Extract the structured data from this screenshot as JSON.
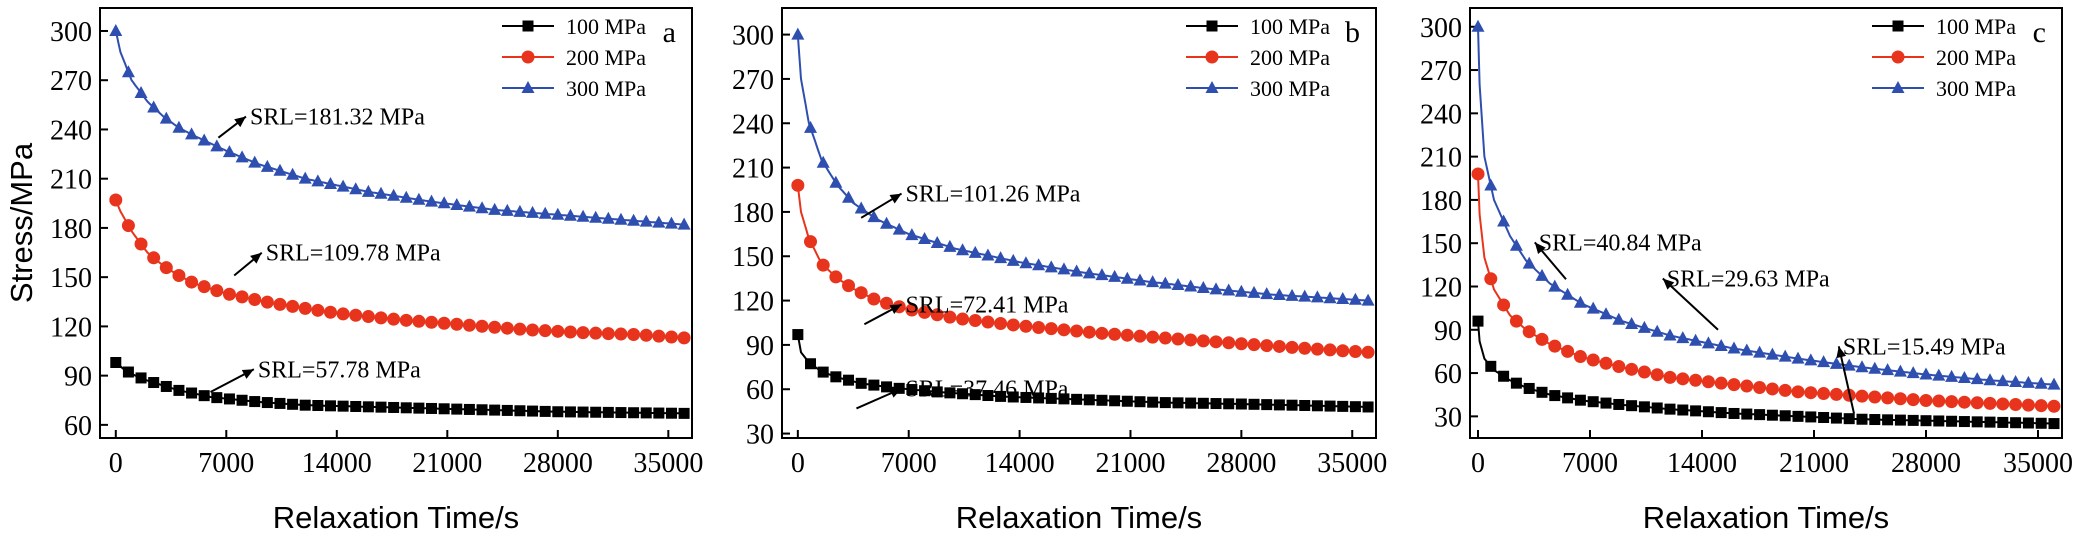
{
  "chart_data": [
    {
      "type": "line",
      "panel_label": "a",
      "xlabel": "Relaxation Time/s",
      "ylabel": "Stress/MPa",
      "xlim": [
        -1000,
        36500
      ],
      "ylim": [
        52,
        314
      ],
      "xticks": [
        0,
        7000,
        14000,
        21000,
        28000,
        35000
      ],
      "yticks": [
        60,
        90,
        120,
        150,
        180,
        210,
        240,
        270,
        300
      ],
      "legend_position": "top-right",
      "series": [
        {
          "name": "100 MPa",
          "color": "#000000",
          "marker": "square",
          "x": [
            0,
            500,
            1000,
            2000,
            3000,
            4000,
            6000,
            9000,
            12000,
            16000,
            20000,
            24000,
            28000,
            32000,
            36000
          ],
          "y": [
            98,
            94,
            91,
            87,
            84,
            81,
            77,
            74,
            72,
            71,
            70,
            69,
            68,
            67.5,
            67
          ]
        },
        {
          "name": "200 MPa",
          "color": "#e8341c",
          "marker": "circle",
          "x": [
            0,
            300,
            1000,
            2000,
            3000,
            4000,
            5000,
            7000,
            10000,
            14000,
            18000,
            22000,
            26000,
            30000,
            33000,
            36000
          ],
          "y": [
            197,
            190,
            178,
            165,
            157,
            151,
            146,
            140,
            134,
            128,
            124,
            121,
            118,
            116,
            115,
            113
          ]
        },
        {
          "name": "300 MPa",
          "color": "#2e4fb0",
          "marker": "triangle",
          "x": [
            0,
            300,
            1000,
            2000,
            3000,
            4000,
            5000,
            7000,
            9000,
            12000,
            16000,
            20000,
            24000,
            28000,
            32000,
            36000
          ],
          "y": [
            300,
            287,
            270,
            257,
            248,
            241,
            236,
            227,
            219,
            210,
            202,
            196,
            191,
            188,
            185,
            182
          ]
        }
      ],
      "annotations": [
        {
          "text": "SRL=181.32 MPa",
          "x": 8500,
          "y": 243,
          "arrow_to": [
            6500,
            235
          ]
        },
        {
          "text": "SRL=109.78 MPa",
          "x": 9500,
          "y": 160,
          "arrow_to": [
            7500,
            151
          ]
        },
        {
          "text": "SRL=57.78 MPa",
          "x": 9000,
          "y": 89,
          "arrow_to": [
            6000,
            80
          ]
        }
      ]
    },
    {
      "type": "line",
      "panel_label": "b",
      "xlabel": "Relaxation Time/s",
      "ylabel": "",
      "xlim": [
        -1000,
        36500
      ],
      "ylim": [
        27,
        318
      ],
      "xticks": [
        0,
        7000,
        14000,
        21000,
        28000,
        35000
      ],
      "yticks": [
        30,
        60,
        90,
        120,
        150,
        180,
        210,
        240,
        270,
        300
      ],
      "legend_position": "top-right",
      "series": [
        {
          "name": "100 MPa",
          "color": "#000000",
          "marker": "square",
          "x": [
            0,
            200,
            700,
            1500,
            2500,
            4000,
            6000,
            9000,
            13000,
            18000,
            23000,
            28000,
            32000,
            36000
          ],
          "y": [
            97,
            85,
            78,
            72,
            68,
            64,
            61,
            58,
            55,
            53,
            51,
            50,
            49,
            48
          ]
        },
        {
          "name": "200 MPa",
          "color": "#e8341c",
          "marker": "circle",
          "x": [
            0,
            200,
            700,
            1500,
            2500,
            3500,
            5000,
            7000,
            10000,
            14000,
            19000,
            24000,
            29000,
            33000,
            36000
          ],
          "y": [
            198,
            180,
            162,
            145,
            135,
            128,
            120,
            114,
            108,
            103,
            98,
            94,
            90,
            87,
            85
          ]
        },
        {
          "name": "300 MPa",
          "color": "#2e4fb0",
          "marker": "triangle",
          "x": [
            0,
            200,
            700,
            1500,
            2500,
            3500,
            5000,
            7000,
            10000,
            14000,
            18000,
            22000,
            26000,
            30000,
            33000,
            36000
          ],
          "y": [
            300,
            270,
            240,
            215,
            198,
            186,
            175,
            165,
            155,
            146,
            139,
            133,
            128,
            124,
            122,
            120
          ]
        }
      ],
      "annotations": [
        {
          "text": "SRL=101.26 MPa",
          "x": 6800,
          "y": 187,
          "arrow_to": [
            4000,
            176
          ]
        },
        {
          "text": "SRL=72.41 MPa",
          "x": 6800,
          "y": 112,
          "arrow_to": [
            4200,
            104
          ]
        },
        {
          "text": "SRL=37.46 MPa",
          "x": 6800,
          "y": 55,
          "arrow_to": [
            3700,
            47
          ]
        }
      ]
    },
    {
      "type": "line",
      "panel_label": "c",
      "xlabel": "Relaxation Time/s",
      "ylabel": "",
      "xlim": [
        -500,
        36500
      ],
      "ylim": [
        15,
        313
      ],
      "xticks": [
        0,
        7000,
        14000,
        21000,
        28000,
        35000
      ],
      "yticks": [
        30,
        60,
        90,
        120,
        150,
        180,
        210,
        240,
        270,
        300
      ],
      "legend_position": "top-right",
      "series": [
        {
          "name": "100 MPa",
          "color": "#000000",
          "marker": "square",
          "x": [
            0,
            100,
            400,
            1000,
            2000,
            3000,
            4500,
            6500,
            9000,
            12000,
            16000,
            20000,
            24000,
            28000,
            32000,
            36000
          ],
          "y": [
            96,
            82,
            70,
            62,
            55,
            50,
            45,
            41,
            38,
            35,
            32,
            30,
            28,
            27,
            26,
            25
          ]
        },
        {
          "name": "200 MPa",
          "color": "#e8341c",
          "marker": "circle",
          "x": [
            0,
            100,
            400,
            1000,
            2000,
            3000,
            4500,
            6500,
            9000,
            12000,
            16000,
            20000,
            24000,
            28000,
            32000,
            36000
          ],
          "y": [
            198,
            170,
            140,
            118,
            100,
            90,
            80,
            71,
            64,
            57,
            52,
            47,
            44,
            41,
            39,
            37
          ]
        },
        {
          "name": "300 MPa",
          "color": "#2e4fb0",
          "marker": "triangle",
          "x": [
            0,
            100,
            400,
            1000,
            2000,
            3000,
            4500,
            6500,
            9000,
            12000,
            16000,
            20000,
            24000,
            28000,
            32000,
            36000
          ],
          "y": [
            300,
            260,
            210,
            180,
            155,
            138,
            122,
            108,
            96,
            86,
            77,
            70,
            64,
            59,
            55,
            52
          ]
        }
      ],
      "annotations": [
        {
          "text": "SRL=40.84 MPa",
          "x": 3800,
          "y": 145,
          "arrow_to": [
            5500,
            125
          ]
        },
        {
          "text": "SRL=29.63 MPa",
          "x": 11800,
          "y": 120,
          "arrow_to": [
            15000,
            90
          ]
        },
        {
          "text": "SRL=15.49 MPa",
          "x": 22800,
          "y": 73,
          "arrow_to": [
            23500,
            32
          ]
        }
      ]
    }
  ]
}
